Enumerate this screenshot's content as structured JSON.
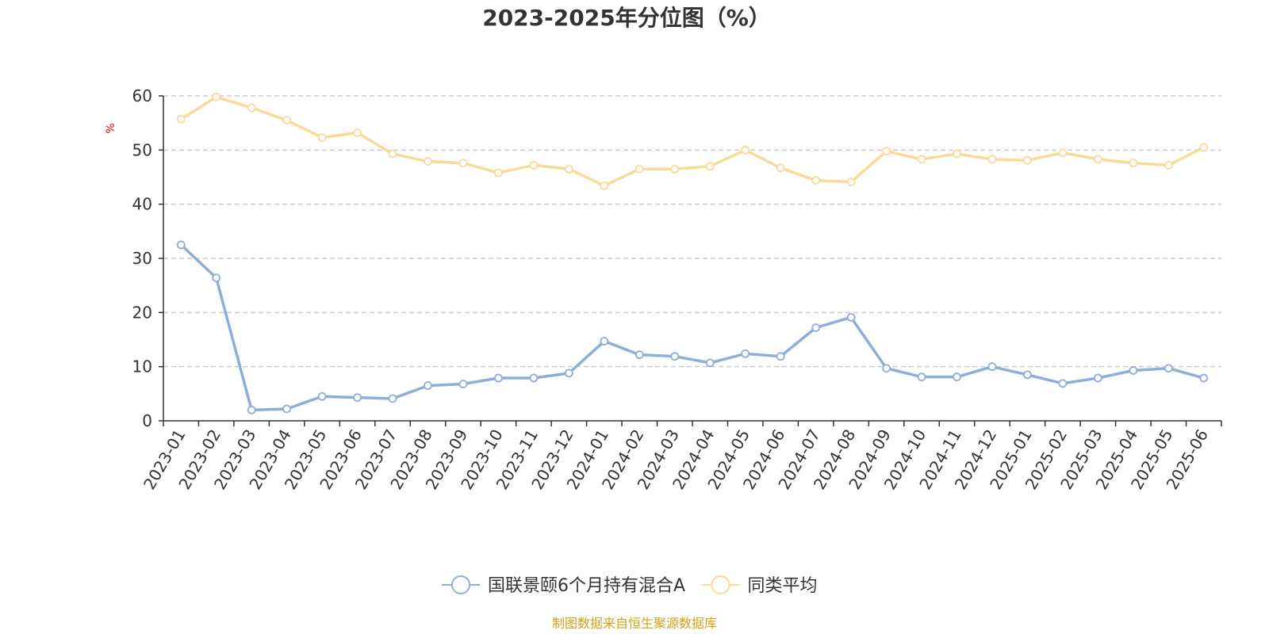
{
  "chart_data": {
    "type": "line",
    "title": "2023-2025年分位图（%）",
    "ylabel": "%",
    "ylim": [
      0,
      60
    ],
    "yticks": [
      "0",
      "10",
      "20",
      "30",
      "40",
      "50",
      "60"
    ],
    "grid": true,
    "legend_position": "bottom-center",
    "categories": [
      "2023-01",
      "2023-02",
      "2023-03",
      "2023-04",
      "2023-05",
      "2023-06",
      "2023-07",
      "2023-08",
      "2023-09",
      "2023-10",
      "2023-11",
      "2023-12",
      "2024-01",
      "2024-02",
      "2024-03",
      "2024-04",
      "2024-05",
      "2024-06",
      "2024-07",
      "2024-08",
      "2024-09",
      "2024-10",
      "2024-11",
      "2024-12",
      "2025-01",
      "2025-02",
      "2025-03",
      "2025-04",
      "2025-05",
      "2025-06"
    ],
    "series": [
      {
        "name": "国联景颐6个月持有混合A",
        "color": "#8eaed9",
        "values": [
          32.5,
          26.4,
          2.0,
          2.2,
          4.5,
          4.3,
          4.1,
          6.5,
          6.8,
          7.9,
          7.9,
          8.8,
          14.7,
          12.2,
          11.9,
          10.7,
          12.4,
          11.9,
          17.2,
          19.1,
          9.7,
          8.1,
          8.1,
          10.0,
          8.5,
          6.9,
          7.9,
          9.3,
          9.7,
          7.9
        ]
      },
      {
        "name": "同类平均",
        "color": "#fcd998",
        "values": [
          55.7,
          59.8,
          57.8,
          55.5,
          52.3,
          53.2,
          49.3,
          47.9,
          47.6,
          45.8,
          47.2,
          46.5,
          43.4,
          46.5,
          46.5,
          47.0,
          50.0,
          46.7,
          44.4,
          44.1,
          49.8,
          48.3,
          49.3,
          48.3,
          48.1,
          49.5,
          48.3,
          47.6,
          47.2,
          50.5
        ]
      }
    ]
  },
  "source_note": "制图数据来自恒生聚源数据库",
  "colors": {
    "axis": "#333333",
    "grid": "#cccccc",
    "ylabel": "#ff0000",
    "source": "#d4a017"
  }
}
